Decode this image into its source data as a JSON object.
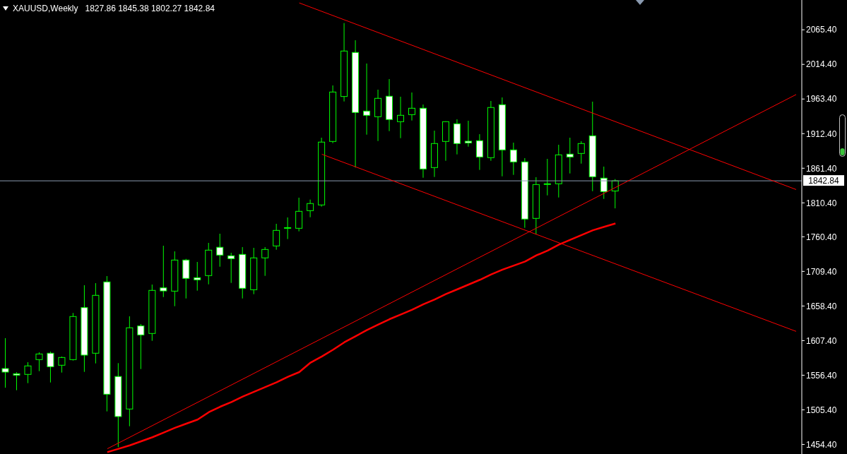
{
  "chart_data": {
    "type": "candlestick",
    "title": "XAUUSD,Weekly",
    "subtitle": "1827.86 1845.38 1802.27 1842.84",
    "color": "#00ff00",
    "categories": [
      null,
      null,
      null,
      null,
      null,
      null,
      null,
      null,
      null,
      null,
      null,
      null,
      null,
      null,
      null,
      null,
      null,
      null,
      null,
      null,
      null,
      null,
      null,
      null,
      null,
      null,
      null,
      null,
      null,
      null,
      null,
      null,
      null,
      null,
      null,
      null,
      null,
      null,
      null,
      null,
      null,
      null,
      null,
      null,
      null,
      null,
      null,
      null,
      null,
      null,
      null,
      null,
      null,
      null,
      null,
      null,
      null,
      null,
      null,
      null,
      null,
      null,
      null,
      null,
      null,
      null,
      null,
      null,
      null,
      null,
      null
    ],
    "ohlc": [
      [
        1566.2,
        1611.0,
        1538.0,
        1561.0
      ],
      [
        1558.6,
        1560.7,
        1534.3,
        1556.5
      ],
      [
        1557.6,
        1575.6,
        1544.7,
        1570.1
      ],
      [
        1579.4,
        1590.1,
        1562.4,
        1587.7
      ],
      [
        1588.8,
        1591.2,
        1545.7,
        1569.0
      ],
      [
        1571.1,
        1583.9,
        1560.3,
        1582.5
      ],
      [
        1579.4,
        1648.1,
        1578.0,
        1642.9
      ],
      [
        1656.0,
        1689.0,
        1561.3,
        1586.0
      ],
      [
        1588.8,
        1692.1,
        1573.8,
        1674.1
      ],
      [
        1693.9,
        1702.5,
        1503.1,
        1528.4
      ],
      [
        1554.5,
        1574.2,
        1450.4,
        1495.5
      ],
      [
        1506.6,
        1643.2,
        1481.2,
        1626.3
      ],
      [
        1629.0,
        1631.8,
        1565.5,
        1615.8
      ],
      [
        1617.9,
        1690.0,
        1607.1,
        1681.4
      ],
      [
        1685.1,
        1747.2,
        1671.6,
        1680.6
      ],
      [
        1680.3,
        1738.9,
        1658.1,
        1726.1
      ],
      [
        1726.1,
        1727.8,
        1669.5,
        1699.1
      ],
      [
        1700.1,
        1723.3,
        1681.0,
        1697.0
      ],
      [
        1703.2,
        1751.4,
        1690.3,
        1740.7
      ],
      [
        1744.9,
        1764.9,
        1716.3,
        1733.4
      ],
      [
        1732.4,
        1736.8,
        1692.4,
        1728.2
      ],
      [
        1734.4,
        1745.2,
        1669.5,
        1684.5
      ],
      [
        1682.4,
        1744.1,
        1675.8,
        1729.3
      ],
      [
        1729.3,
        1745.2,
        1702.8,
        1741.7
      ],
      [
        1746.9,
        1779.5,
        1741.3,
        1769.8
      ],
      [
        1773.2,
        1788.9,
        1757.0,
        1773.9
      ],
      [
        1772.9,
        1818.0,
        1768.4,
        1797.9
      ],
      [
        1798.9,
        1815.2,
        1789.2,
        1809.4
      ],
      [
        1807.3,
        1906.4,
        1804.8,
        1899.9
      ],
      [
        1900.9,
        1983.4,
        1898.4,
        1973.7
      ],
      [
        1967.1,
        2075.3,
        1959.8,
        2034.1
      ],
      [
        2032.0,
        2050.0,
        1862.4,
        1943.6
      ],
      [
        1945.6,
        2015.7,
        1910.9,
        1939.4
      ],
      [
        1937.3,
        1977.2,
        1901.5,
        1964.4
      ],
      [
        1967.5,
        1992.8,
        1916.1,
        1933.2
      ],
      [
        1930.0,
        1966.8,
        1905.7,
        1939.4
      ],
      [
        1940.4,
        1973.0,
        1931.7,
        1949.8
      ],
      [
        1949.8,
        1955.3,
        1847.4,
        1860.3
      ],
      [
        1862.4,
        1916.8,
        1848.5,
        1897.8
      ],
      [
        1900.9,
        1930.5,
        1872.4,
        1930.0
      ],
      [
        1926.9,
        1933.5,
        1881.8,
        1897.8
      ],
      [
        1901.2,
        1931.4,
        1893.2,
        1898.8
      ],
      [
        1902.0,
        1911.6,
        1858.9,
        1878.0
      ],
      [
        1877.0,
        1960.5,
        1872.4,
        1950.9
      ],
      [
        1955.0,
        1965.7,
        1849.5,
        1888.4
      ],
      [
        1888.4,
        1899.1,
        1851.6,
        1870.7
      ],
      [
        1870.7,
        1876.3,
        1773.6,
        1786.5
      ],
      [
        1787.5,
        1848.2,
        1763.9,
        1837.4
      ],
      [
        1838.0,
        1875.2,
        1821.4,
        1838.5
      ],
      [
        1838.5,
        1896.0,
        1818.3,
        1881.1
      ],
      [
        1882.2,
        1906.4,
        1853.7,
        1878.0
      ],
      [
        1883.2,
        1901.2,
        1868.2,
        1897.8
      ],
      [
        1909.2,
        1959.5,
        1827.6,
        1848.9
      ],
      [
        1846.8,
        1863.8,
        1816.2,
        1827.0
      ],
      [
        1827.86,
        1845.38,
        1802.27,
        1842.84
      ],
      null,
      null,
      null,
      null,
      null,
      null,
      null,
      null,
      null,
      null,
      null,
      null,
      null,
      null,
      null,
      null
    ],
    "series": [
      {
        "type": "line",
        "color": "#ff0000",
        "values": [
          null,
          null,
          null,
          null,
          null,
          null,
          null,
          null,
          null,
          null,
          null,
          null,
          null,
          null,
          null,
          null,
          null,
          null,
          null,
          null,
          null,
          null,
          null,
          null,
          null,
          null,
          2105,
          null,
          null,
          null,
          null,
          null,
          null,
          null,
          null,
          null,
          null,
          null,
          null,
          null,
          null,
          null,
          null,
          null,
          null,
          null,
          null,
          null,
          null,
          null,
          null,
          null,
          null,
          null,
          null,
          null,
          null,
          null,
          null,
          null,
          null,
          null,
          null,
          null,
          null,
          null,
          null,
          null,
          null,
          null,
          1830
        ]
      },
      {
        "type": "line",
        "color": "#ff0000",
        "values": [
          null,
          null,
          null,
          null,
          null,
          null,
          null,
          null,
          null,
          null,
          null,
          null,
          null,
          null,
          null,
          null,
          null,
          null,
          null,
          null,
          null,
          null,
          null,
          null,
          null,
          null,
          null,
          null,
          1882,
          null,
          null,
          null,
          null,
          null,
          null,
          null,
          null,
          null,
          null,
          null,
          null,
          null,
          null,
          null,
          null,
          null,
          null,
          null,
          null,
          null,
          null,
          null,
          null,
          null,
          null,
          null,
          null,
          null,
          null,
          null,
          null,
          null,
          null,
          null,
          null,
          null,
          null,
          null,
          null,
          null,
          1621
        ]
      },
      {
        "type": "line",
        "color": "#ff0000",
        "values": [
          null,
          null,
          null,
          null,
          null,
          null,
          null,
          null,
          null,
          1448,
          null,
          null,
          null,
          null,
          null,
          null,
          null,
          null,
          null,
          null,
          null,
          null,
          null,
          null,
          null,
          null,
          null,
          null,
          null,
          null,
          null,
          null,
          null,
          null,
          null,
          null,
          null,
          null,
          null,
          null,
          null,
          null,
          null,
          null,
          null,
          null,
          null,
          null,
          null,
          null,
          null,
          null,
          null,
          null,
          null,
          null,
          null,
          null,
          null,
          null,
          null,
          null,
          null,
          null,
          null,
          null,
          null,
          null,
          null,
          null,
          1970
        ]
      },
      {
        "type": "line",
        "color": "#ff0000",
        "values": [
          null,
          null,
          null,
          null,
          null,
          null,
          null,
          null,
          null,
          1443,
          1448,
          1453,
          1459,
          1465,
          1472,
          1479,
          1485,
          1491,
          1502,
          1510,
          1517,
          1525,
          1532,
          1539,
          1546,
          1554,
          1561,
          1575,
          1584,
          1594,
          1605,
          1614,
          1623,
          1631,
          1639,
          1646,
          1653,
          1661,
          1668,
          1676,
          1683,
          1690,
          1697,
          1705,
          1712,
          1718,
          1724,
          1733,
          1740,
          1749,
          1756,
          1763,
          1770,
          1775,
          1780,
          null,
          null,
          null,
          null,
          null,
          null,
          null,
          null,
          null,
          null,
          null,
          null,
          null,
          null,
          null,
          null
        ]
      }
    ],
    "ylim": [
      1440.3,
      2109.3
    ],
    "yticks": [
      {
        "value": 1454.4,
        "label": "1454.40"
      },
      {
        "value": 1505.4,
        "label": "1505.40"
      },
      {
        "value": 1556.4,
        "label": "1556.40"
      },
      {
        "value": 1607.4,
        "label": "1607.40"
      },
      {
        "value": 1658.4,
        "label": "1658.40"
      },
      {
        "value": 1709.4,
        "label": "1709.40"
      },
      {
        "value": 1760.4,
        "label": "1760.40"
      },
      {
        "value": 1810.4,
        "label": "1810.40"
      },
      {
        "value": 1861.4,
        "label": "1861.40"
      },
      {
        "value": 1912.4,
        "label": "1912.40"
      },
      {
        "value": 1963.4,
        "label": "1963.40"
      },
      {
        "value": 2014.4,
        "label": "2014.40"
      },
      {
        "value": 2065.4,
        "label": "2065.40"
      }
    ],
    "ref_lines": [
      {
        "axis": "y",
        "value": 1842.84,
        "label": "1842.84",
        "color": "#8a9ab0"
      }
    ],
    "tick_labels": "y"
  }
}
